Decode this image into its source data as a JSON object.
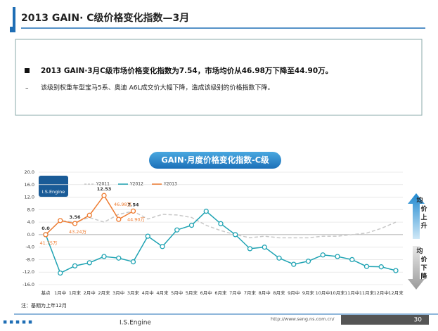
{
  "header": {
    "title": "2013 GAIN· C级价格变化指数—3月"
  },
  "summary": {
    "bullets": [
      "2013 GAIN·3月C级市场价格变化指数为7.54，市场均价从46.98万下降至44.90万。",
      "该级别权重车型宝马5系、奥迪 A6L成交价大幅下降，造成该级别的价格指数下降。"
    ]
  },
  "chart_data": {
    "type": "line",
    "title": "GAIN·月度价格变化指数-C级",
    "logo": "I.S.Engine",
    "categories": [
      "基点",
      "1月中",
      "1月末",
      "2月中",
      "2月末",
      "3月中",
      "3月末",
      "4月中",
      "4月末",
      "5月中",
      "5月末",
      "6月中",
      "6月末",
      "7月中",
      "7月末",
      "8月中",
      "8月末",
      "9月中",
      "9月末",
      "10月中",
      "10月末",
      "11月中",
      "11月末",
      "12月中",
      "12月末"
    ],
    "series": [
      {
        "name": "Y2011",
        "color": "#c8c8c8",
        "dashed": true,
        "values": [
          0,
          4.5,
          4.0,
          5.5,
          4.0,
          6.5,
          7.5,
          5.0,
          6.5,
          6.3,
          5.5,
          3.0,
          1.3,
          0,
          -1.0,
          -0.5,
          -1.0,
          -1.0,
          -1.0,
          -0.5,
          -0.5,
          0,
          0.5,
          2.0,
          4.0
        ]
      },
      {
        "name": "Y2012",
        "color": "#1fa3b3",
        "values": [
          0,
          -12.3,
          -10.0,
          -9.0,
          -7.0,
          -7.5,
          -8.7,
          -0.5,
          -3.8,
          1.5,
          3.0,
          7.5,
          3.5,
          0,
          -4.5,
          -4.0,
          -7.5,
          -9.5,
          -8.5,
          -6.5,
          -7.0,
          -8.0,
          -10.2,
          -10.3,
          -11.5
        ]
      },
      {
        "name": "Y2013",
        "color": "#ee7b30",
        "values": [
          0,
          4.5,
          3.56,
          6.2,
          12.53,
          4.9,
          7.54,
          null,
          null,
          null,
          null,
          null,
          null,
          null,
          null,
          null,
          null,
          null,
          null,
          null,
          null,
          null,
          null,
          null,
          null
        ],
        "value_labels": [
          "0.0",
          null,
          "3.56",
          null,
          "12.53",
          null,
          "7.54",
          null,
          null,
          null,
          null,
          null,
          null,
          null,
          null,
          null,
          null,
          null,
          null,
          null,
          null,
          null,
          null,
          null,
          null
        ]
      }
    ],
    "annotations": [
      {
        "text": "41.75万",
        "category": "基点"
      },
      {
        "text": "43.24万",
        "category": "1月末"
      },
      {
        "text": "46.98万",
        "category": "2月末"
      },
      {
        "text": "44.90万",
        "category": "3月末"
      }
    ],
    "ylim": [
      -16,
      20
    ],
    "yticks": [
      {
        "value": -16,
        "label": "-16.0"
      },
      {
        "value": -12,
        "label": "-12.0"
      },
      {
        "value": -8,
        "label": "-8.0"
      },
      {
        "value": -4,
        "label": "-4.0"
      },
      {
        "value": 0,
        "label": "0.0"
      },
      {
        "value": 4,
        "label": "4.0"
      },
      {
        "value": 8,
        "label": "8.0"
      },
      {
        "value": 12,
        "label": "12.0"
      },
      {
        "value": 16,
        "label": "16.0"
      },
      {
        "value": 20,
        "label": "20.0"
      }
    ],
    "grid": true,
    "up_label": "均价上升",
    "down_label": "均价下降",
    "note": "注：基期为上年12月"
  },
  "footer": {
    "brand": "I.S.Engine",
    "url": "http://www.seng.ns.com.cn/",
    "page": "30"
  }
}
